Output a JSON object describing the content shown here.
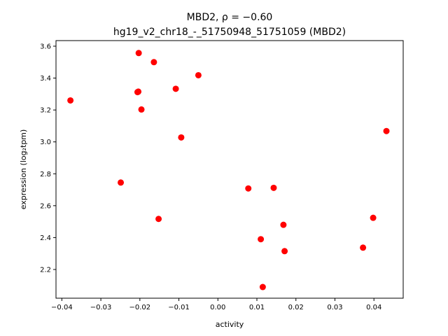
{
  "chart_data": {
    "type": "scatter",
    "title_line1": "MBD2, ρ = −0.60",
    "title_line2": "hg19_v2_chr18_-_51750948_51751059 (MBD2)",
    "xlabel": "activity",
    "ylabel": "expression (log₂tpm)",
    "xlim": [
      -0.0415,
      0.0475
    ],
    "ylim": [
      2.02,
      3.635
    ],
    "xticks": [
      -0.04,
      -0.03,
      -0.02,
      -0.01,
      0.0,
      0.01,
      0.02,
      0.03,
      0.04
    ],
    "xtick_labels": [
      "−0.04",
      "−0.03",
      "−0.02",
      "−0.01",
      "0.00",
      "0.01",
      "0.02",
      "0.03",
      "0.04"
    ],
    "yticks": [
      2.2,
      2.4,
      2.6,
      2.8,
      3.0,
      3.2,
      3.4,
      3.6
    ],
    "ytick_labels": [
      "2.2",
      "2.4",
      "2.6",
      "2.8",
      "3.0",
      "3.2",
      "3.4",
      "3.6"
    ],
    "grid": false,
    "marker_color": "#ff0000",
    "points": [
      {
        "x": -0.0378,
        "y": 3.26
      },
      {
        "x": -0.0249,
        "y": 2.745
      },
      {
        "x": -0.0203,
        "y": 3.557
      },
      {
        "x": -0.0206,
        "y": 3.312
      },
      {
        "x": -0.0204,
        "y": 3.315
      },
      {
        "x": -0.0196,
        "y": 3.203
      },
      {
        "x": -0.0164,
        "y": 3.5
      },
      {
        "x": -0.0152,
        "y": 2.517
      },
      {
        "x": -0.0108,
        "y": 3.333
      },
      {
        "x": -0.0094,
        "y": 3.028
      },
      {
        "x": -0.005,
        "y": 3.418
      },
      {
        "x": 0.0078,
        "y": 2.708
      },
      {
        "x": 0.011,
        "y": 2.39
      },
      {
        "x": 0.0115,
        "y": 2.09
      },
      {
        "x": 0.0143,
        "y": 2.712
      },
      {
        "x": 0.0168,
        "y": 2.48
      },
      {
        "x": 0.0171,
        "y": 2.315
      },
      {
        "x": 0.0372,
        "y": 2.337
      },
      {
        "x": 0.0398,
        "y": 2.524
      },
      {
        "x": 0.0432,
        "y": 3.068
      }
    ]
  }
}
